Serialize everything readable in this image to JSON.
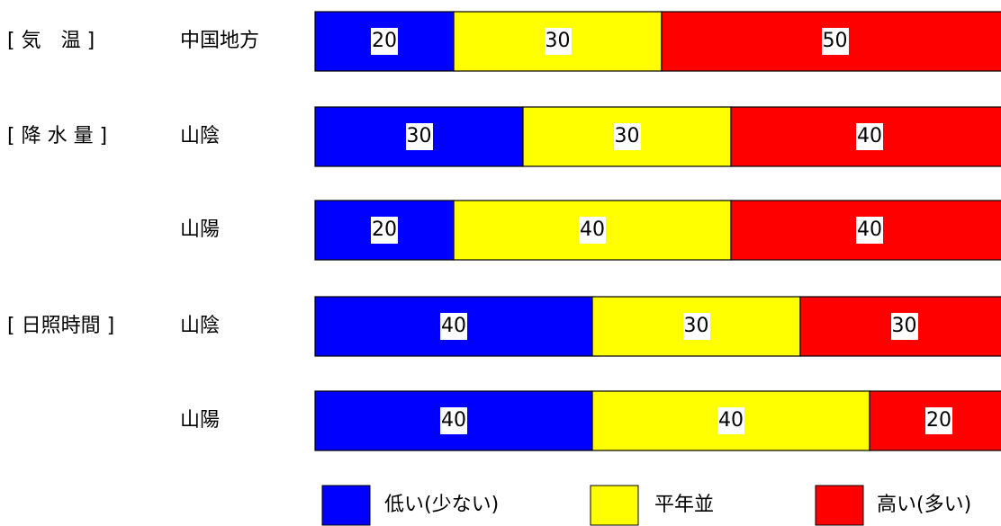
{
  "chart_data": {
    "type": "bar",
    "stacked": true,
    "orientation": "horizontal",
    "percent": true,
    "rows": [
      {
        "group": "[気　温]",
        "category": "中国地方",
        "values": [
          20,
          30,
          50
        ]
      },
      {
        "group": "[降水量]",
        "category": "山陰",
        "values": [
          30,
          30,
          40
        ]
      },
      {
        "group": "",
        "category": "山陽",
        "values": [
          20,
          40,
          40
        ]
      },
      {
        "group": "[日照時間]",
        "category": "山陰",
        "values": [
          40,
          30,
          30
        ]
      },
      {
        "group": "",
        "category": "山陽",
        "values": [
          40,
          40,
          20
        ]
      }
    ],
    "series": [
      {
        "name": "低い(少ない)",
        "color": "#0000ff"
      },
      {
        "name": "平年並",
        "color": "#ffff00"
      },
      {
        "name": "高い(多い)",
        "color": "#ff0000"
      }
    ],
    "legend": "bottom"
  },
  "group_labels": [
    "[ 気　温 ]",
    "[ 降 水 量 ]",
    "",
    "[ 日照時間 ]",
    ""
  ],
  "row_labels": [
    "中国地方",
    "山陰",
    "山陽",
    "山陰",
    "山陽"
  ],
  "legend_labels": [
    "低い(少ない)",
    "平年並",
    "高い(多い)"
  ]
}
